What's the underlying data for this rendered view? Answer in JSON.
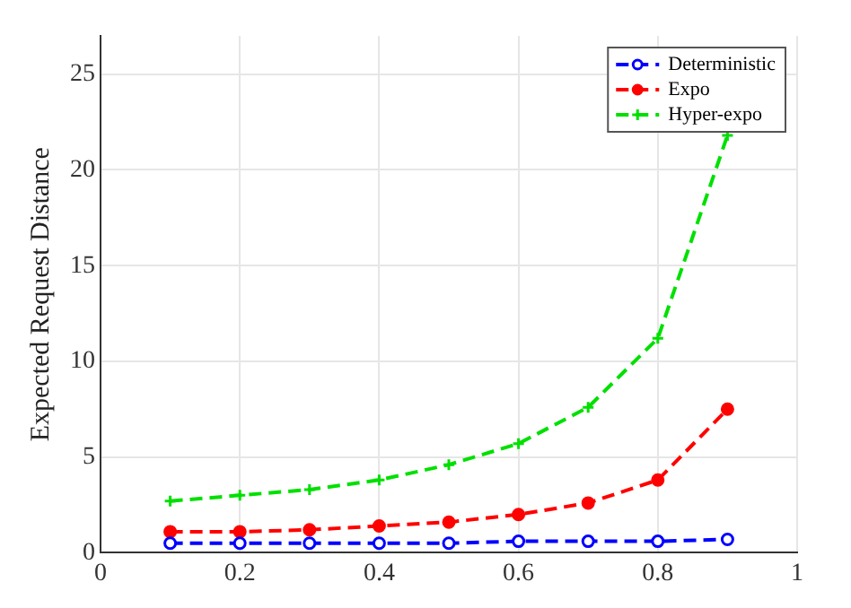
{
  "chart_data": {
    "type": "line",
    "ylabel": "Expected Request Distance",
    "x": [
      0.1,
      0.2,
      0.3,
      0.4,
      0.5,
      0.6,
      0.7,
      0.8,
      0.9
    ],
    "series": [
      {
        "name": "Deterministic",
        "color": "#0000ff",
        "marker": "circle",
        "values": [
          0.5,
          0.5,
          0.5,
          0.5,
          0.5,
          0.6,
          0.6,
          0.6,
          0.7
        ]
      },
      {
        "name": "Expo",
        "color": "#ff0000",
        "marker": "circle",
        "values": [
          1.1,
          1.1,
          1.2,
          1.4,
          1.6,
          2,
          2.6,
          3.8,
          7.5
        ]
      },
      {
        "name": "Hyper-expo",
        "color": "#00e000",
        "marker": "cross",
        "values": [
          2.7,
          3,
          3.3,
          3.8,
          4.6,
          5.7,
          7.6,
          11.2,
          21.8
        ]
      }
    ],
    "xlim": [
      0,
      1
    ],
    "xticks": [
      0,
      0.2,
      0.4,
      0.6,
      0.8,
      1
    ],
    "ylim": [
      0,
      27
    ],
    "yticks": [
      0,
      5,
      10,
      15,
      20,
      25
    ],
    "grid": true,
    "legend": "top right",
    "line_style": "dashed"
  }
}
